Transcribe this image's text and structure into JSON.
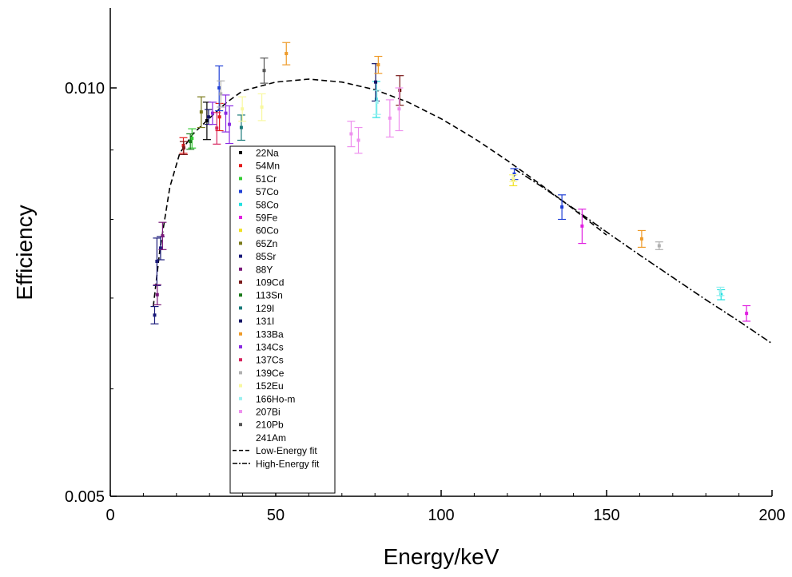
{
  "chart_data": {
    "type": "scatter",
    "title": "",
    "xlabel": "Energy/keV",
    "ylabel": "Efficiency",
    "xlim": [
      0,
      200
    ],
    "ylim": [
      0.005,
      0.012
    ],
    "y_scale": "log",
    "x_ticks": [
      0,
      50,
      100,
      150,
      200
    ],
    "x_tick_labels": [
      "0",
      "50",
      "100",
      "150",
      "200"
    ],
    "y_ticks": [
      0.005,
      0.01
    ],
    "y_tick_labels": [
      "0.005",
      "0.010"
    ],
    "legend_position": "center-left",
    "legend": [
      {
        "label": "22Na",
        "color": "#000000"
      },
      {
        "label": "54Mn",
        "color": "#e31a1c"
      },
      {
        "label": "51Cr",
        "color": "#33cc33"
      },
      {
        "label": "57Co",
        "color": "#1f3fd6"
      },
      {
        "label": "58Co",
        "color": "#22e0e0"
      },
      {
        "label": "59Fe",
        "color": "#e020e0"
      },
      {
        "label": "60Co",
        "color": "#f0e020"
      },
      {
        "label": "65Zn",
        "color": "#7a7a1a"
      },
      {
        "label": "85Sr",
        "color": "#1a1a7a"
      },
      {
        "label": "88Y",
        "color": "#7a1a7a"
      },
      {
        "label": "109Cd",
        "color": "#7a1a1a"
      },
      {
        "label": "113Sn",
        "color": "#1a7a1a"
      },
      {
        "label": "129I",
        "color": "#1a7a7a"
      },
      {
        "label": "131I",
        "color": "#141466"
      },
      {
        "label": "133Ba",
        "color": "#ee9a28"
      },
      {
        "label": "134Cs",
        "color": "#8a2be2"
      },
      {
        "label": "137Cs",
        "color": "#d6245e"
      },
      {
        "label": "139Ce",
        "color": "#b0b0b0"
      },
      {
        "label": "152Eu",
        "color": "#f8f8a0"
      },
      {
        "label": "166Ho-m",
        "color": "#9af0f0"
      },
      {
        "label": "207Bi",
        "color": "#ee90ee"
      },
      {
        "label": "210Pb",
        "color": "#555555"
      },
      {
        "label": "241Am",
        "color": ""
      },
      {
        "label": "Low-Energy fit",
        "color": "#000000",
        "style": "dashed"
      },
      {
        "label": "High-Energy fit",
        "color": "#000000",
        "style": "dashdot"
      }
    ],
    "series": [
      {
        "name": "22Na",
        "color": "#000000",
        "points": [
          [
            29.2,
            0.00946,
            0.0003
          ]
        ]
      },
      {
        "name": "54Mn",
        "color": "#e31a1c",
        "points": [
          [
            22.1,
            0.00907,
            0.00012
          ],
          [
            33.0,
            0.00952,
            0.00022
          ]
        ]
      },
      {
        "name": "51Cr",
        "color": "#33cc33",
        "points": [
          [
            24.7,
            0.00918,
            0.00015
          ]
        ]
      },
      {
        "name": "57Co",
        "color": "#1f3fd6",
        "points": [
          [
            32.9,
            0.01,
            0.00038
          ],
          [
            122.1,
            0.00864,
            8e-05
          ],
          [
            136.5,
            0.00817,
            0.00017
          ]
        ]
      },
      {
        "name": "58Co",
        "color": "#22e0e0",
        "points": [
          [
            80.4,
            0.00981,
            0.0003
          ],
          [
            184.6,
            0.00704,
            6e-05
          ]
        ]
      },
      {
        "name": "59Fe",
        "color": "#e020e0",
        "points": [
          [
            142.6,
            0.00791,
            0.00023
          ],
          [
            192.3,
            0.00682,
            9e-05
          ]
        ]
      },
      {
        "name": "60Co",
        "color": "#f0e020",
        "points": [
          [
            121.8,
            0.00855,
            8e-05
          ]
        ]
      },
      {
        "name": "65Zn",
        "color": "#7a7a1a",
        "points": [
          [
            27.5,
            0.0096,
            0.00025
          ]
        ]
      },
      {
        "name": "85Sr",
        "color": "#1a1a7a",
        "points": [
          [
            13.4,
            0.0068,
            0.0001
          ],
          [
            14.1,
            0.00745,
            0.0003
          ],
          [
            15.2,
            0.00762,
            0.00015
          ]
        ]
      },
      {
        "name": "88Y",
        "color": "#7a1a7a",
        "points": [
          [
            14.2,
            0.00704,
            0.00012
          ],
          [
            15.8,
            0.00778,
            0.00018
          ]
        ]
      },
      {
        "name": "109Cd",
        "color": "#7a1a1a",
        "points": [
          [
            22.2,
            0.00903,
            0.0001
          ],
          [
            87.5,
            0.00996,
            0.00025
          ]
        ]
      },
      {
        "name": "113Sn",
        "color": "#1a7a1a",
        "points": [
          [
            24.2,
            0.00913,
            0.00012
          ]
        ]
      },
      {
        "name": "129I",
        "color": "#1a7a7a",
        "points": [
          [
            39.6,
            0.00935,
            0.0002
          ]
        ]
      },
      {
        "name": "131I",
        "color": "#141466",
        "points": [
          [
            29.7,
            0.00952,
            0.00012
          ],
          [
            80.2,
            0.0101,
            0.00032
          ]
        ]
      },
      {
        "name": "133Ba",
        "color": "#ee9a28",
        "points": [
          [
            53.2,
            0.0106,
            0.0002
          ],
          [
            81.0,
            0.0104,
            0.00015
          ],
          [
            160.6,
            0.00774,
            0.00011
          ]
        ]
      },
      {
        "name": "134Cs",
        "color": "#8a2be2",
        "points": [
          [
            30.9,
            0.00958,
            0.00018
          ],
          [
            34.9,
            0.00958,
            0.0003
          ],
          [
            36.0,
            0.0094,
            0.0003
          ]
        ]
      },
      {
        "name": "137Cs",
        "color": "#d6245e",
        "points": [
          [
            32.2,
            0.00934,
            0.00025
          ]
        ]
      },
      {
        "name": "139Ce",
        "color": "#b0b0b0",
        "points": [
          [
            33.4,
            0.0099,
            0.00022
          ],
          [
            165.9,
            0.00765,
            5e-05
          ]
        ]
      },
      {
        "name": "152Eu",
        "color": "#f8f8a0",
        "points": [
          [
            39.9,
            0.00965,
            0.0002
          ],
          [
            45.8,
            0.00968,
            0.00022
          ],
          [
            121.8,
            0.00858,
            5e-05
          ]
        ]
      },
      {
        "name": "166Ho-m",
        "color": "#9af0f0",
        "points": [
          [
            80.6,
            0.00976,
            0.0002
          ],
          [
            184.4,
            0.00708,
            5e-05
          ]
        ]
      },
      {
        "name": "207Bi",
        "color": "#ee90ee",
        "points": [
          [
            72.8,
            0.00925,
            0.0002
          ],
          [
            75.0,
            0.00915,
            0.0002
          ],
          [
            84.5,
            0.0095,
            0.0003
          ],
          [
            87.3,
            0.00965,
            0.00035
          ]
        ]
      },
      {
        "name": "210Pb",
        "color": "#555555",
        "points": [
          [
            46.5,
            0.0103,
            0.00022
          ]
        ]
      }
    ],
    "fits": [
      {
        "name": "Low-Energy fit",
        "style": "dashed",
        "x": [
          13,
          15,
          18,
          21,
          25,
          30,
          35,
          40,
          50,
          60,
          70,
          80,
          90,
          100,
          110,
          120,
          130,
          140,
          150
        ],
        "y": [
          0.0069,
          0.0076,
          0.00845,
          0.00895,
          0.00925,
          0.0095,
          0.00975,
          0.00995,
          0.0101,
          0.01015,
          0.0101,
          0.00997,
          0.00976,
          0.00949,
          0.00918,
          0.00884,
          0.00849,
          0.00814,
          0.00779
        ]
      },
      {
        "name": "High-Energy fit",
        "style": "dashdot",
        "x": [
          122,
          130,
          140,
          150,
          160,
          170,
          180,
          190,
          200
        ],
        "y": [
          0.00872,
          0.00847,
          0.00815,
          0.00783,
          0.00753,
          0.00725,
          0.00698,
          0.00673,
          0.00648
        ]
      }
    ]
  }
}
